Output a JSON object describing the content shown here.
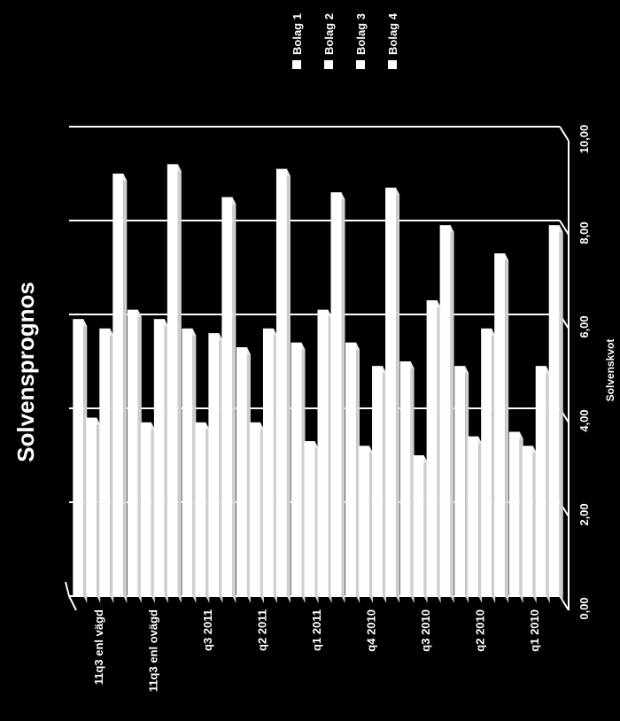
{
  "chart_data": {
    "type": "bar",
    "orientation": "horizontal-3d",
    "title": "Solvensprognos",
    "xlabel": "Solvenskvot",
    "xlim": [
      0,
      10
    ],
    "ticks": [
      "0,00",
      "2,00",
      "4,00",
      "6,00",
      "8,00",
      "10,00"
    ],
    "tick_values": [
      0,
      2,
      4,
      6,
      8,
      10
    ],
    "categories": [
      "11q3 enl vägd",
      "11q3 enl ovägd",
      "q3 2011",
      "q2 2011",
      "q1 2011",
      "q4 2010",
      "q3 2010",
      "q2 2010",
      "q1 2010"
    ],
    "series": [
      {
        "name": "Bolag 1",
        "values": [
          5.9,
          6.1,
          5.7,
          5.3,
          5.4,
          5.4,
          5.0,
          4.9,
          3.5
        ]
      },
      {
        "name": "Bolag 2",
        "values": [
          3.8,
          3.7,
          3.7,
          3.7,
          3.3,
          3.2,
          3.0,
          3.4,
          3.2
        ]
      },
      {
        "name": "Bolag 3",
        "values": [
          5.7,
          5.9,
          5.6,
          5.7,
          6.1,
          4.9,
          6.3,
          5.7,
          4.9
        ]
      },
      {
        "name": "Bolag 4",
        "values": [
          9.0,
          9.2,
          8.5,
          9.1,
          8.6,
          8.7,
          7.9,
          7.3,
          7.9
        ]
      }
    ],
    "grid": true,
    "legend_position": "top-right",
    "colors": {
      "background": "#000000",
      "bars": "#ffffff",
      "text": "#ffffff"
    }
  }
}
